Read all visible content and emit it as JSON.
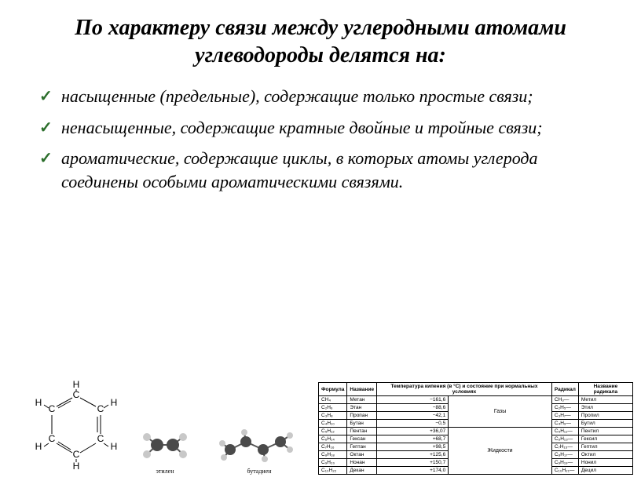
{
  "title": "По характеру связи между углеродными атомами углеводороды делятся на:",
  "bullets": [
    "насыщенные (предельные), содержащие только простые связи;",
    "ненасыщенные, содержащие кратные двойные и тройные связи;",
    "ароматические, содержащие циклы, в которых атомы углерода соединены особыми ароматическими связями."
  ],
  "benzene": {
    "atom": "C",
    "H": "H"
  },
  "molecules": [
    {
      "label": "этилен"
    },
    {
      "label": "бутадиен"
    }
  ],
  "table": {
    "headers": {
      "formula": "Формула",
      "name": "Название",
      "temp": "Температура кипения (в °C) и состояние при нормальных условиях",
      "radical": "Радикал",
      "radical_name": "Название радикала"
    },
    "groups": [
      "Газы",
      "Жидкости"
    ],
    "rows": [
      {
        "f": "CH₄",
        "n": "Метан",
        "t": "−161,6",
        "g": 0,
        "r": "CH₃—",
        "rn": "Метил"
      },
      {
        "f": "C₂H₆",
        "n": "Этан",
        "t": "−88,6",
        "g": 0,
        "r": "C₂H₅—",
        "rn": "Этил"
      },
      {
        "f": "C₃H₈",
        "n": "Пропан",
        "t": "−42,1",
        "g": 0,
        "r": "C₃H₇—",
        "rn": "Пропил"
      },
      {
        "f": "C₄H₁₀",
        "n": "Бутан",
        "t": "−0,5",
        "g": 0,
        "r": "C₄H₉—",
        "rn": "Бутил"
      },
      {
        "f": "C₅H₁₂",
        "n": "Пентан",
        "t": "+36,07",
        "g": 1,
        "r": "C₅H₁₁—",
        "rn": "Пентил"
      },
      {
        "f": "C₆H₁₄",
        "n": "Гексан",
        "t": "+68,7",
        "g": 1,
        "r": "C₆H₁₃—",
        "rn": "Гексил"
      },
      {
        "f": "C₇H₁₆",
        "n": "Гептан",
        "t": "+98,5",
        "g": 1,
        "r": "C₇H₁₅—",
        "rn": "Гептил"
      },
      {
        "f": "C₈H₁₈",
        "n": "Октан",
        "t": "+125,6",
        "g": 1,
        "r": "C₈H₁₇—",
        "rn": "Октил"
      },
      {
        "f": "C₉H₂₀",
        "n": "Нонан",
        "t": "+150,7",
        "g": 1,
        "r": "C₉H₁₉—",
        "rn": "Нонил"
      },
      {
        "f": "C₁₀H₂₂",
        "n": "Декан",
        "t": "+174,0",
        "g": 1,
        "r": "C₁₀H₂₁—",
        "rn": "Децил"
      }
    ]
  }
}
